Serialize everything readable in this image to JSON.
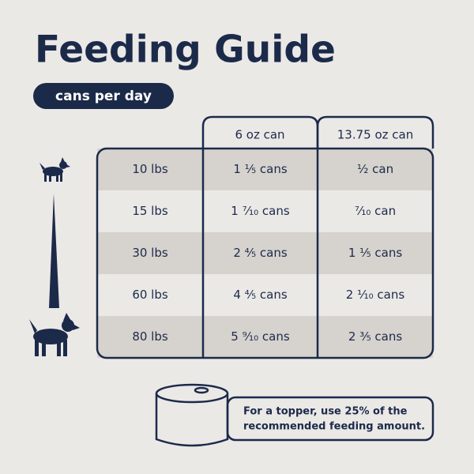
{
  "header": {
    "title": "Feeding Guide",
    "badge": "cans per day"
  },
  "table": {
    "columns": [
      "6 oz can",
      "13.75 oz can"
    ],
    "rows": [
      [
        "10 lbs",
        "1 ¹⁄₅ cans",
        "¹⁄₂ can"
      ],
      [
        "15 lbs",
        "1 ⁷⁄₁₀ cans",
        "⁷⁄₁₀ can"
      ],
      [
        "30 lbs",
        "2 ⁴⁄₅ cans",
        "1 ¹⁄₅ cans"
      ],
      [
        "60 lbs",
        "4 ⁴⁄₅ cans",
        "2 ¹⁄₁₀ cans"
      ],
      [
        "80 lbs",
        "5 ⁹⁄₁₀ cans",
        "2 ³⁄₅ cans"
      ]
    ]
  },
  "note": {
    "lines": [
      "For a topper, use 25% of the",
      "recommended feeding amount."
    ]
  }
}
